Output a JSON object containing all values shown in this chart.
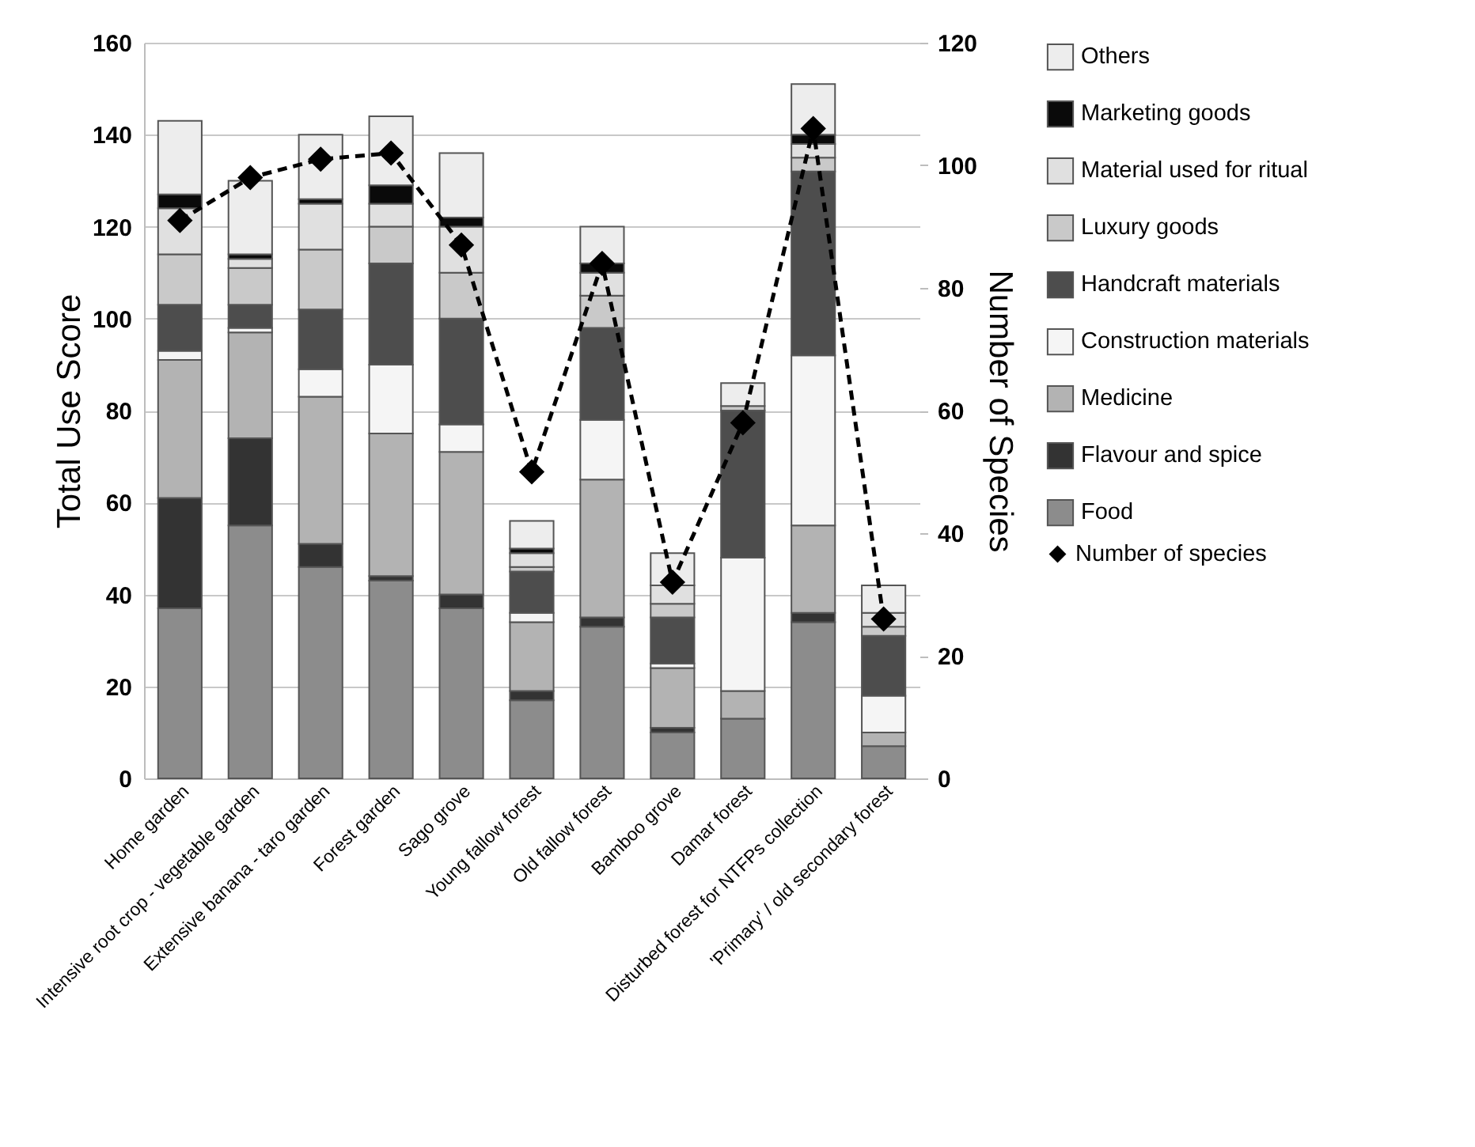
{
  "chart_data": {
    "type": "bar",
    "stacked": true,
    "ylabel": "Total Use Score",
    "y2label": "Number of Species",
    "categories": [
      "Home garden",
      "Intensive root crop - vegetable garden",
      "Extensive banana - taro garden",
      "Forest garden",
      "Sago grove",
      "Young fallow forest",
      "Old fallow forest",
      "Bamboo grove",
      "Damar forest",
      "Disturbed forest for NTFPs collection",
      "'Primary' / old secondary forest"
    ],
    "series": [
      {
        "name": "Food",
        "color": "#8c8c8c",
        "values": [
          37,
          55,
          46,
          43,
          37,
          17,
          33,
          10,
          13,
          34,
          7
        ]
      },
      {
        "name": "Flavour and spice",
        "color": "#333333",
        "values": [
          24,
          19,
          5,
          1,
          3,
          2,
          2,
          1,
          0,
          2,
          0
        ]
      },
      {
        "name": "Medicine",
        "color": "#b3b3b3",
        "values": [
          30,
          23,
          32,
          31,
          31,
          15,
          30,
          13,
          6,
          19,
          3
        ]
      },
      {
        "name": "Construction materials",
        "color": "#f5f5f5",
        "values": [
          2,
          1,
          6,
          15,
          6,
          2,
          13,
          1,
          29,
          37,
          8
        ]
      },
      {
        "name": "Handcraft materials",
        "color": "#4d4d4d",
        "values": [
          10,
          5,
          13,
          22,
          23,
          9,
          20,
          10,
          32,
          40,
          13
        ]
      },
      {
        "name": "Luxury goods",
        "color": "#c9c9c9",
        "values": [
          11,
          8,
          13,
          8,
          10,
          1,
          7,
          3,
          1,
          3,
          2
        ]
      },
      {
        "name": "Material used for ritual",
        "color": "#e0e0e0",
        "values": [
          10,
          2,
          10,
          5,
          10,
          3,
          5,
          4,
          0,
          3,
          3
        ]
      },
      {
        "name": "Marketing goods",
        "color": "#0a0a0a",
        "values": [
          3,
          1,
          1,
          4,
          2,
          1,
          2,
          null,
          0,
          2,
          0
        ]
      },
      {
        "name": "Others",
        "color": "#ededed",
        "values": [
          16,
          16,
          14,
          15,
          14,
          6,
          8,
          7,
          5,
          11,
          6
        ]
      },
      {
        "name": "Number of species",
        "type": "line",
        "axis": "y2",
        "color": "#000000",
        "values": [
          91,
          98,
          101,
          102,
          87,
          50,
          84,
          32,
          58,
          106,
          26
        ]
      }
    ],
    "ylim": [
      0,
      160
    ],
    "yticks": [
      0,
      20,
      40,
      60,
      80,
      100,
      120,
      140,
      160
    ],
    "y2lim": [
      0,
      120
    ],
    "y2ticks": [
      0,
      20,
      40,
      60,
      80,
      100,
      120
    ],
    "grid": "y",
    "legend": "right",
    "marker": "diamond",
    "line_style": "dashed"
  }
}
